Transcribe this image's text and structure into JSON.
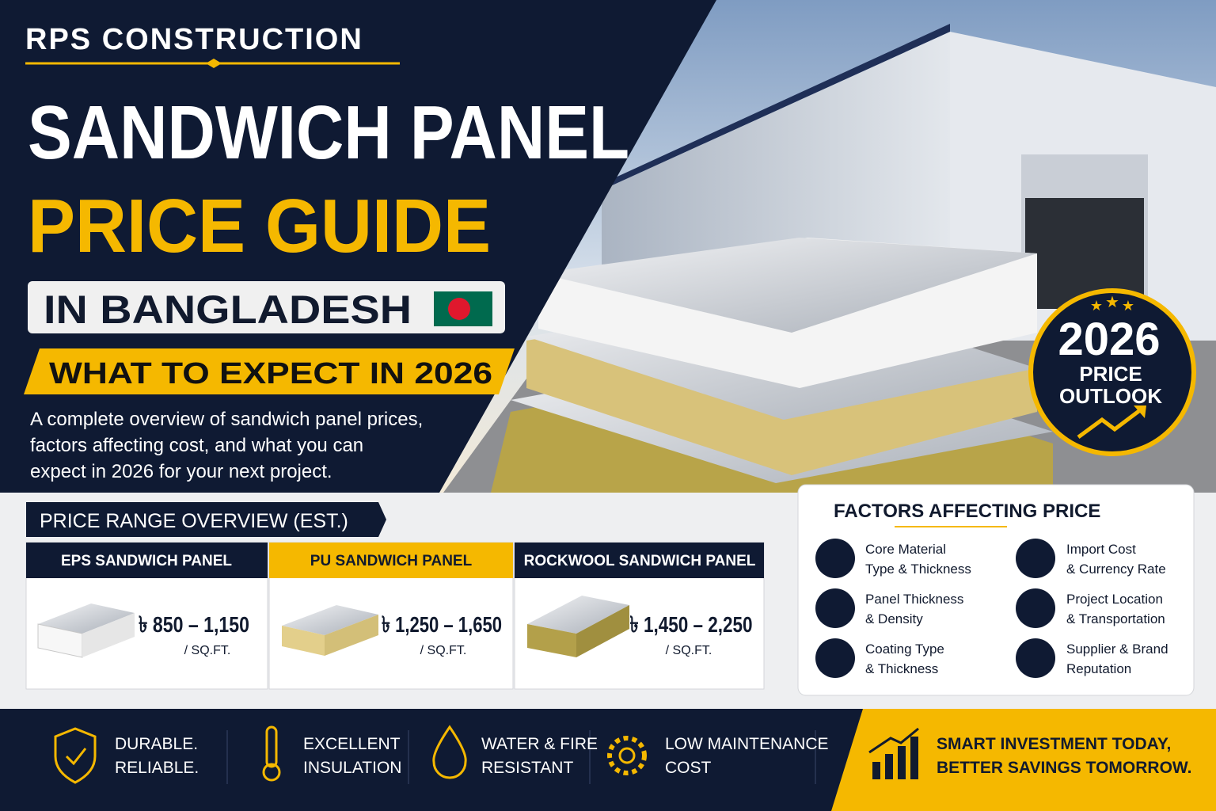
{
  "header": {
    "brand": "RPS CONSTRUCTION",
    "title_line1": "SANDWICH PANEL",
    "title_line2": "PRICE GUIDE",
    "location": "IN BANGLADESH",
    "tagline": "WHAT TO EXPECT IN 2026",
    "description": [
      "A complete overview of sandwich panel prices,",
      "factors affecting cost, and what you can",
      "expect in 2026 for your next project."
    ]
  },
  "badge": {
    "year": "2026",
    "line1": "PRICE",
    "line2": "OUTLOOK"
  },
  "price_range": {
    "title": "PRICE RANGE OVERVIEW (EST.)",
    "panels": [
      {
        "name": "EPS SANDWICH PANEL",
        "price": "৳ 850 – 1,150",
        "unit": "/ SQ.FT."
      },
      {
        "name": "PU SANDWICH PANEL",
        "price": "৳ 1,250 – 1,650",
        "unit": "/ SQ.FT."
      },
      {
        "name": "ROCKWOOL SANDWICH PANEL",
        "price": "৳ 1,450 – 2,250",
        "unit": "/ SQ.FT."
      }
    ]
  },
  "factors": {
    "title": "FACTORS AFFECTING PRICE",
    "items": [
      [
        "Core Material",
        "Type & Thickness"
      ],
      [
        "Import Cost",
        "& Currency Rate"
      ],
      [
        "Panel Thickness",
        "& Density"
      ],
      [
        "Project Location",
        "& Transportation"
      ],
      [
        "Coating Type",
        "& Thickness"
      ],
      [
        "Supplier & Brand",
        "Reputation"
      ]
    ]
  },
  "footer": {
    "features": [
      [
        "DURABLE.",
        "RELIABLE."
      ],
      [
        "EXCELLENT",
        "INSULATION"
      ],
      [
        "WATER & FIRE",
        "RESISTANT"
      ],
      [
        "LOW MAINTENANCE",
        "COST"
      ]
    ],
    "slogan": [
      "SMART INVESTMENT TODAY,",
      "BETTER SAVINGS TOMORROW."
    ]
  }
}
